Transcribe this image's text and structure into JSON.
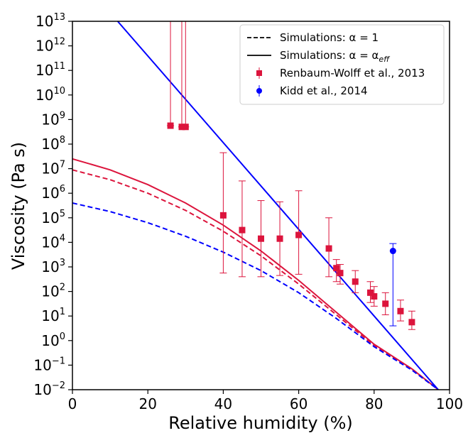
{
  "chart_data": {
    "type": "scatter",
    "xlabel": "Relative humidity (%)",
    "ylabel": "Viscosity (Pa s)",
    "xlim": [
      0,
      100
    ],
    "ylim_log10": [
      -2,
      13
    ],
    "y_scale": "log",
    "x_ticks": [
      "0",
      "20",
      "40",
      "60",
      "80",
      "100"
    ],
    "y_tick_base": "10",
    "y_tick_exponents": [
      "−2",
      "−1",
      "0",
      "1",
      "2",
      "3",
      "4",
      "5",
      "6",
      "7",
      "8",
      "9",
      "10",
      "11",
      "12",
      "13"
    ],
    "grid": false,
    "legend_position": "top-right",
    "colors": {
      "red": "#dc143c",
      "blue": "#0000ff",
      "black": "#000000"
    },
    "legend": [
      {
        "label": "Simulations: α = 1",
        "kind": "dashed-line"
      },
      {
        "label_main": "Simulations: α = α",
        "label_sub": "eff",
        "kind": "solid-line"
      },
      {
        "label": "Renbaum-Wolff et al., 2013",
        "kind": "red-square"
      },
      {
        "label": "Kidd et al., 2014",
        "kind": "blue-circle"
      }
    ],
    "series": [
      {
        "name": "Simulations: α = 1",
        "color": "#dc143c",
        "style": "dashed",
        "x": [
          0,
          10,
          20,
          30,
          40,
          50,
          60,
          70,
          80,
          90,
          97
        ],
        "log10_y": [
          6.95,
          6.55,
          6.0,
          5.3,
          4.45,
          3.45,
          2.3,
          1.05,
          -0.2,
          -1.15,
          -2.0
        ]
      },
      {
        "name": "Simulations: α = α_eff",
        "color": "#dc143c",
        "style": "solid",
        "x": [
          0,
          10,
          20,
          30,
          40,
          50,
          60,
          70,
          80,
          90,
          97
        ],
        "log10_y": [
          7.4,
          6.95,
          6.35,
          5.6,
          4.7,
          3.65,
          2.45,
          1.15,
          -0.15,
          -1.15,
          -2.0
        ]
      },
      {
        "name": "Simulations: α = 1",
        "color": "#0000ff",
        "style": "dashed",
        "x": [
          0,
          10,
          20,
          30,
          40,
          50,
          60,
          70,
          80,
          90,
          97
        ],
        "log10_y": [
          5.6,
          5.25,
          4.8,
          4.25,
          3.6,
          2.85,
          1.95,
          0.9,
          -0.25,
          -1.2,
          -2.0
        ]
      },
      {
        "name": "Simulations: α = α_eff",
        "color": "#0000ff",
        "style": "solid",
        "x": [
          12,
          97
        ],
        "log10_y": [
          13.0,
          -2.0
        ]
      }
    ],
    "points": [
      {
        "name": "Renbaum-Wolff et al., 2013",
        "color": "#dc143c",
        "marker": "square",
        "data": [
          {
            "x": 26,
            "log10_y": 8.75,
            "log10_lo": 8.75,
            "log10_hi": 13.0
          },
          {
            "x": 29,
            "log10_y": 8.7,
            "log10_lo": 8.7,
            "log10_hi": 13.0
          },
          {
            "x": 30,
            "log10_y": 8.7,
            "log10_lo": 8.7,
            "log10_hi": 13.0
          },
          {
            "x": 40,
            "log10_y": 5.1,
            "log10_lo": 2.75,
            "log10_hi": 7.65
          },
          {
            "x": 45,
            "log10_y": 4.5,
            "log10_lo": 2.6,
            "log10_hi": 6.5
          },
          {
            "x": 50,
            "log10_y": 4.15,
            "log10_lo": 2.6,
            "log10_hi": 5.7
          },
          {
            "x": 55,
            "log10_y": 4.15,
            "log10_lo": 2.65,
            "log10_hi": 5.65
          },
          {
            "x": 60,
            "log10_y": 4.3,
            "log10_lo": 2.7,
            "log10_hi": 6.1
          },
          {
            "x": 68,
            "log10_y": 3.75,
            "log10_lo": 2.6,
            "log10_hi": 5.0
          },
          {
            "x": 70,
            "log10_y": 2.95,
            "log10_lo": 2.4,
            "log10_hi": 3.3
          },
          {
            "x": 71,
            "log10_y": 2.75,
            "log10_lo": 2.3,
            "log10_hi": 3.1
          },
          {
            "x": 75,
            "log10_y": 2.4,
            "log10_lo": 1.95,
            "log10_hi": 2.85
          },
          {
            "x": 79,
            "log10_y": 1.95,
            "log10_lo": 1.55,
            "log10_hi": 2.4
          },
          {
            "x": 80,
            "log10_y": 1.8,
            "log10_lo": 1.4,
            "log10_hi": 2.2
          },
          {
            "x": 83,
            "log10_y": 1.5,
            "log10_lo": 1.05,
            "log10_hi": 1.95
          },
          {
            "x": 87,
            "log10_y": 1.2,
            "log10_lo": 0.8,
            "log10_hi": 1.65
          },
          {
            "x": 90,
            "log10_y": 0.75,
            "log10_lo": 0.45,
            "log10_hi": 1.2
          }
        ]
      },
      {
        "name": "Kidd et al., 2014",
        "color": "#0000ff",
        "marker": "circle",
        "data": [
          {
            "x": 85,
            "log10_y": 3.65,
            "log10_lo": 0.6,
            "log10_hi": 3.95
          }
        ]
      }
    ]
  }
}
